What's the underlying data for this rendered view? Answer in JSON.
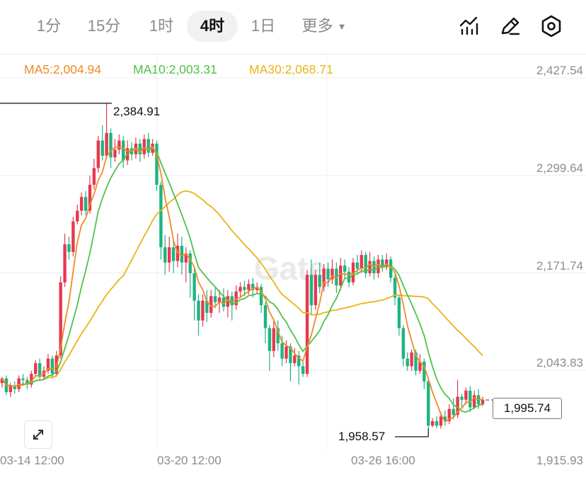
{
  "timeframes": [
    {
      "label": "1分",
      "active": false
    },
    {
      "label": "15分",
      "active": false
    },
    {
      "label": "1时",
      "active": false
    },
    {
      "label": "4时",
      "active": true
    },
    {
      "label": "1日",
      "active": false
    }
  ],
  "more_label": "更多",
  "toolbar_icons": [
    "indicator-icon",
    "draw-pen-icon",
    "settings-gear-icon"
  ],
  "ma_legend": {
    "ma5": "MA5:2,004.94",
    "ma10": "MA10:2,003.31",
    "ma30": "MA30:2,068.71"
  },
  "colors": {
    "up": "#e6394f",
    "down": "#1fb481",
    "ma5": "#ee8b28",
    "ma10": "#4ec24a",
    "ma30": "#e9b416"
  },
  "price_axis": [
    "2,427.54",
    "2,299.64",
    "2,171.74",
    "2,043.83",
    "1,915.93"
  ],
  "date_axis": [
    "03-14 12:00",
    "03-20 12:00",
    "03-26 16:00"
  ],
  "high_marker": "2,384.91",
  "low_marker": "1,958.57",
  "last_price": "1,995.74",
  "watermark": "Gate",
  "chart_data": {
    "type": "candlestick",
    "y_range": [
      1915.93,
      2427.54
    ],
    "x_labels": [
      "03-14 12:00",
      "03-20 12:00",
      "03-26 16:00"
    ],
    "high": 2384.91,
    "low": 1958.57,
    "last": 1995.74,
    "grid": true,
    "candles": [
      [
        2018,
        2024,
        2026,
        2012
      ],
      [
        2024,
        2006,
        2028,
        2002
      ],
      [
        2006,
        2014,
        2018,
        2000
      ],
      [
        2014,
        2010,
        2020,
        2004
      ],
      [
        2010,
        2024,
        2028,
        2006
      ],
      [
        2024,
        2022,
        2030,
        2016
      ],
      [
        2022,
        2016,
        2026,
        2010
      ],
      [
        2016,
        2030,
        2034,
        2012
      ],
      [
        2030,
        2044,
        2048,
        2026
      ],
      [
        2044,
        2026,
        2050,
        2022
      ],
      [
        2026,
        2034,
        2040,
        2022
      ],
      [
        2034,
        2050,
        2056,
        2030
      ],
      [
        2050,
        2030,
        2054,
        2024
      ],
      [
        2030,
        2054,
        2060,
        2026
      ],
      [
        2054,
        2150,
        2158,
        2050
      ],
      [
        2150,
        2200,
        2214,
        2144
      ],
      [
        2200,
        2190,
        2210,
        2180
      ],
      [
        2190,
        2230,
        2236,
        2184
      ],
      [
        2230,
        2244,
        2252,
        2226
      ],
      [
        2244,
        2262,
        2268,
        2238
      ],
      [
        2262,
        2244,
        2270,
        2238
      ],
      [
        2244,
        2278,
        2290,
        2240
      ],
      [
        2278,
        2300,
        2312,
        2272
      ],
      [
        2300,
        2336,
        2342,
        2294
      ],
      [
        2336,
        2316,
        2356,
        2310
      ],
      [
        2316,
        2346,
        2385,
        2312
      ],
      [
        2346,
        2314,
        2352,
        2300
      ],
      [
        2314,
        2324,
        2338,
        2308
      ],
      [
        2324,
        2336,
        2344,
        2318
      ],
      [
        2336,
        2310,
        2342,
        2300
      ],
      [
        2310,
        2326,
        2336,
        2304
      ],
      [
        2326,
        2318,
        2334,
        2310
      ],
      [
        2318,
        2332,
        2340,
        2312
      ],
      [
        2332,
        2318,
        2338,
        2308
      ],
      [
        2318,
        2338,
        2344,
        2312
      ],
      [
        2338,
        2320,
        2346,
        2314
      ],
      [
        2320,
        2332,
        2338,
        2316
      ],
      [
        2332,
        2278,
        2336,
        2270
      ],
      [
        2278,
        2196,
        2282,
        2180
      ],
      [
        2196,
        2176,
        2212,
        2160
      ],
      [
        2176,
        2196,
        2210,
        2164
      ],
      [
        2196,
        2178,
        2206,
        2162
      ],
      [
        2178,
        2198,
        2214,
        2170
      ],
      [
        2198,
        2176,
        2210,
        2160
      ],
      [
        2176,
        2188,
        2196,
        2150
      ],
      [
        2188,
        2162,
        2192,
        2130
      ],
      [
        2162,
        2126,
        2170,
        2100
      ],
      [
        2126,
        2100,
        2134,
        2080
      ],
      [
        2100,
        2126,
        2134,
        2092
      ],
      [
        2126,
        2110,
        2140,
        2098
      ],
      [
        2110,
        2132,
        2140,
        2104
      ],
      [
        2132,
        2124,
        2144,
        2116
      ],
      [
        2124,
        2130,
        2140,
        2110
      ],
      [
        2130,
        2118,
        2142,
        2112
      ],
      [
        2118,
        2132,
        2140,
        2104
      ],
      [
        2132,
        2120,
        2138,
        2100
      ],
      [
        2120,
        2138,
        2146,
        2114
      ],
      [
        2138,
        2144,
        2150,
        2130
      ],
      [
        2144,
        2140,
        2152,
        2132
      ],
      [
        2140,
        2148,
        2154,
        2134
      ],
      [
        2148,
        2140,
        2156,
        2130
      ],
      [
        2140,
        2144,
        2150,
        2136
      ],
      [
        2144,
        2120,
        2148,
        2110
      ],
      [
        2120,
        2090,
        2124,
        2070
      ],
      [
        2090,
        2060,
        2094,
        2034
      ],
      [
        2060,
        2090,
        2102,
        2052
      ],
      [
        2090,
        2070,
        2100,
        2060
      ],
      [
        2070,
        2050,
        2080,
        2040
      ],
      [
        2050,
        2066,
        2074,
        2044
      ],
      [
        2066,
        2044,
        2070,
        2020
      ],
      [
        2044,
        2054,
        2064,
        2040
      ],
      [
        2054,
        2040,
        2060,
        2016
      ],
      [
        2040,
        2030,
        2046,
        2026
      ],
      [
        2030,
        2160,
        2166,
        2026
      ],
      [
        2160,
        2120,
        2180,
        2108
      ],
      [
        2120,
        2160,
        2166,
        2114
      ],
      [
        2160,
        2144,
        2176,
        2136
      ],
      [
        2144,
        2168,
        2174,
        2138
      ],
      [
        2168,
        2154,
        2176,
        2144
      ],
      [
        2154,
        2168,
        2180,
        2148
      ],
      [
        2168,
        2146,
        2176,
        2136
      ],
      [
        2146,
        2172,
        2182,
        2140
      ],
      [
        2172,
        2164,
        2180,
        2156
      ],
      [
        2164,
        2150,
        2170,
        2144
      ],
      [
        2150,
        2176,
        2182,
        2146
      ],
      [
        2176,
        2168,
        2186,
        2160
      ],
      [
        2168,
        2186,
        2192,
        2162
      ],
      [
        2186,
        2162,
        2190,
        2156
      ],
      [
        2162,
        2178,
        2190,
        2158
      ],
      [
        2178,
        2162,
        2184,
        2154
      ],
      [
        2162,
        2180,
        2186,
        2156
      ],
      [
        2180,
        2170,
        2186,
        2164
      ],
      [
        2170,
        2180,
        2188,
        2166
      ],
      [
        2180,
        2156,
        2184,
        2150
      ],
      [
        2156,
        2130,
        2160,
        2120
      ],
      [
        2130,
        2090,
        2134,
        2080
      ],
      [
        2090,
        2050,
        2094,
        2040
      ],
      [
        2050,
        2040,
        2058,
        2034
      ],
      [
        2040,
        2058,
        2062,
        2034
      ],
      [
        2058,
        2034,
        2062,
        2028
      ],
      [
        2034,
        2046,
        2056,
        2030
      ],
      [
        2046,
        2020,
        2050,
        2010
      ],
      [
        2020,
        1962,
        2024,
        1958.57
      ],
      [
        1962,
        1968,
        1972,
        1960
      ],
      [
        1968,
        1962,
        1974,
        1958.57
      ],
      [
        1962,
        1974,
        1980,
        1958
      ],
      [
        1974,
        1968,
        1982,
        1962
      ],
      [
        1968,
        1984,
        1990,
        1964
      ],
      [
        1984,
        1976,
        1998,
        1970
      ],
      [
        1976,
        2000,
        2022,
        1972
      ],
      [
        2000,
        1996,
        2004,
        1984
      ],
      [
        1996,
        2008,
        2012,
        1990
      ],
      [
        2008,
        1986,
        2014,
        1980
      ],
      [
        1986,
        2002,
        2008,
        1984
      ],
      [
        2002,
        1990,
        2010,
        1984
      ],
      [
        1990,
        1996,
        2000,
        1988
      ]
    ]
  }
}
